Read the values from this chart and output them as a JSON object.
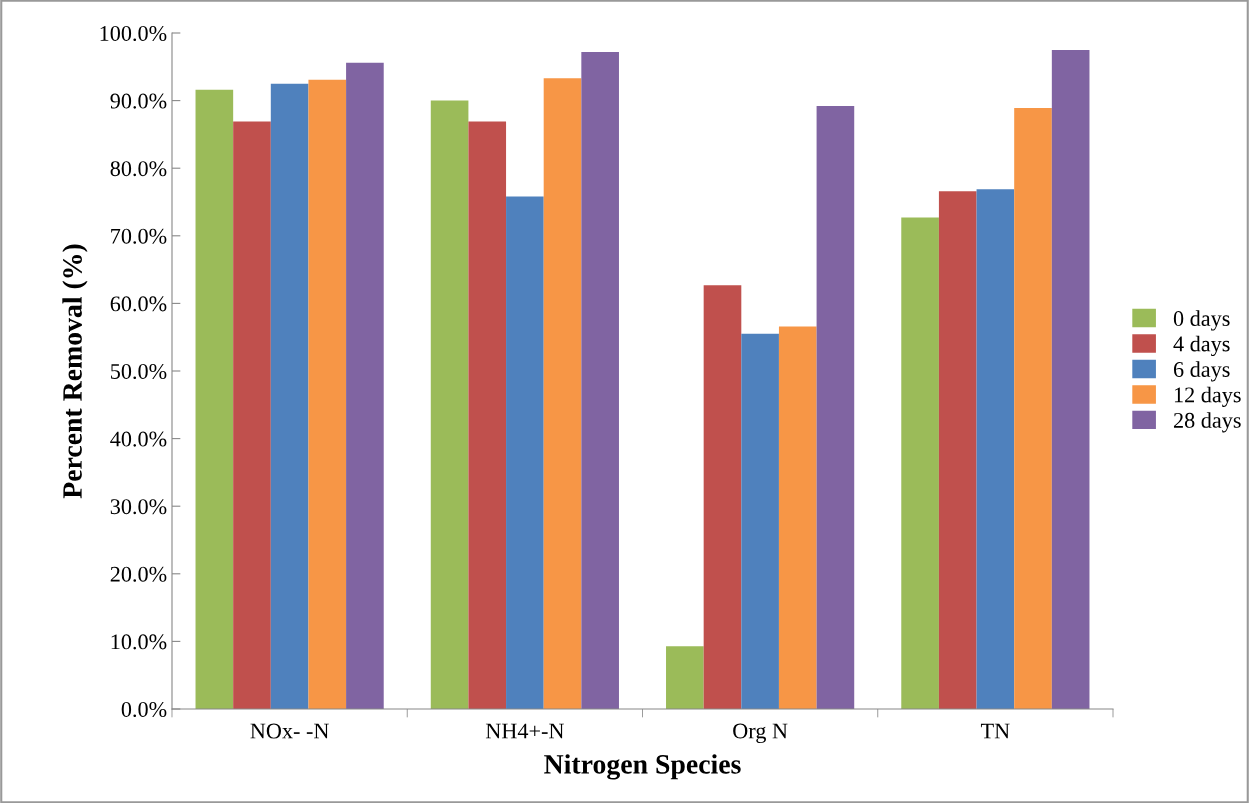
{
  "chart_data": {
    "type": "bar",
    "xlabel": "Nitrogen Species",
    "ylabel": "Percent Removal (%)",
    "categories": [
      "NOx- -N",
      "NH4+-N",
      "Org N",
      "TN"
    ],
    "series": [
      {
        "name": "0 days",
        "color": "#9bbb59",
        "values": [
          91.6,
          90.0,
          9.3,
          72.7
        ]
      },
      {
        "name": "4 days",
        "color": "#c0504d",
        "values": [
          86.9,
          86.9,
          62.7,
          76.6
        ]
      },
      {
        "name": "6 days",
        "color": "#4f81bd",
        "values": [
          92.5,
          75.8,
          55.5,
          76.9
        ]
      },
      {
        "name": "12 days",
        "color": "#f79646",
        "values": [
          93.1,
          93.3,
          56.6,
          88.9
        ]
      },
      {
        "name": "28 days",
        "color": "#8064a2",
        "values": [
          95.6,
          97.2,
          89.2,
          97.5
        ]
      }
    ],
    "ylim": [
      0,
      100
    ],
    "yticks": [
      {
        "value": 0,
        "label": "0.0%"
      },
      {
        "value": 10,
        "label": "10.0%"
      },
      {
        "value": 20,
        "label": "20.0%"
      },
      {
        "value": 30,
        "label": "30.0%"
      },
      {
        "value": 40,
        "label": "40.0%"
      },
      {
        "value": 50,
        "label": "50.0%"
      },
      {
        "value": 60,
        "label": "60.0%"
      },
      {
        "value": 70,
        "label": "70.0%"
      },
      {
        "value": 80,
        "label": "80.0%"
      },
      {
        "value": 90,
        "label": "90.0%"
      },
      {
        "value": 100,
        "label": "100.0%"
      }
    ],
    "grid": false,
    "legend": "right"
  }
}
